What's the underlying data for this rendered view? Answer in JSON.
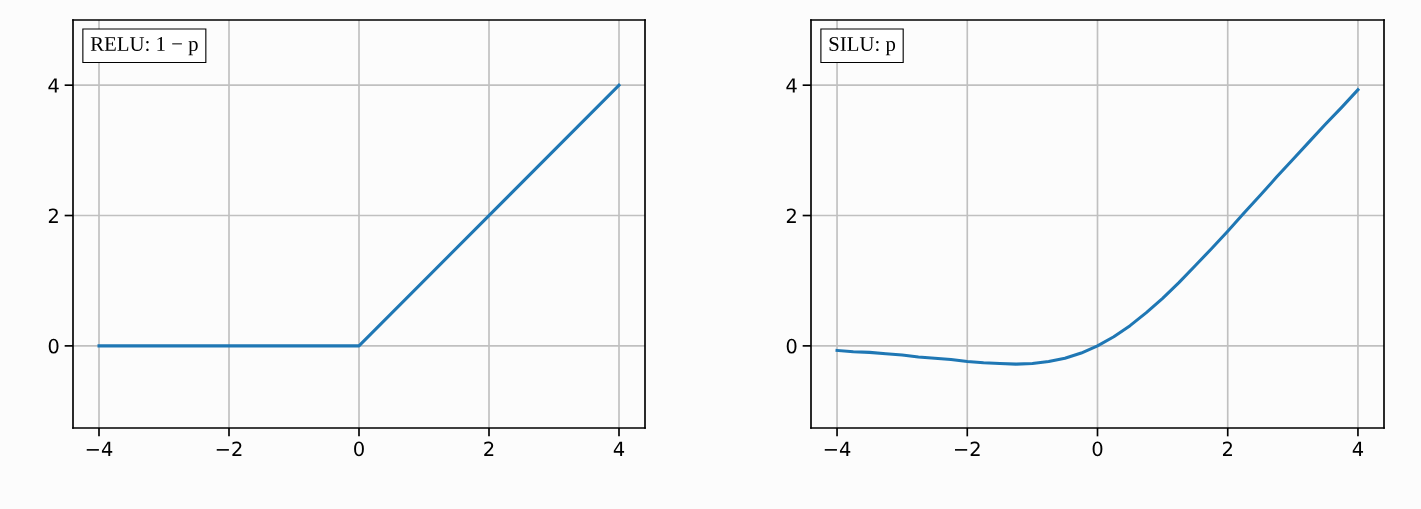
{
  "chart_data": [
    {
      "type": "line",
      "x": [
        -4,
        0,
        4
      ],
      "series": [
        {
          "color": "#1f77b4",
          "values": [
            0,
            0,
            4
          ]
        }
      ],
      "xlim": [
        -4.4,
        4.4
      ],
      "ylim": [
        -1.26,
        5
      ],
      "xticks": [
        -4,
        -2,
        0,
        2,
        4
      ],
      "yticks": [
        0,
        2,
        4
      ],
      "grid": true,
      "annotations": [
        "RELU: 1 − p"
      ]
    },
    {
      "type": "line",
      "x": [
        -4,
        -3.75,
        -3.5,
        -3.25,
        -3,
        -2.75,
        -2.5,
        -2.25,
        -2,
        -1.75,
        -1.5,
        -1.25,
        -1,
        -0.75,
        -0.5,
        -0.25,
        0,
        0.25,
        0.5,
        0.75,
        1,
        1.25,
        1.5,
        1.75,
        2,
        2.25,
        2.5,
        2.75,
        3,
        3.25,
        3.5,
        3.75,
        4
      ],
      "series": [
        {
          "color": "#1f77b4",
          "values": [
            -0.07,
            -0.09,
            -0.1,
            -0.12,
            -0.14,
            -0.17,
            -0.19,
            -0.21,
            -0.24,
            -0.26,
            -0.27,
            -0.28,
            -0.27,
            -0.24,
            -0.19,
            -0.11,
            0,
            0.14,
            0.31,
            0.51,
            0.73,
            0.97,
            1.23,
            1.49,
            1.76,
            2.04,
            2.31,
            2.59,
            2.86,
            3.13,
            3.4,
            3.66,
            3.93
          ]
        }
      ],
      "xlim": [
        -4.4,
        4.4
      ],
      "ylim": [
        -1.26,
        5
      ],
      "xticks": [
        -4,
        -2,
        0,
        2,
        4
      ],
      "yticks": [
        0,
        2,
        4
      ],
      "grid": true,
      "annotations": [
        "SILU: p"
      ]
    }
  ]
}
